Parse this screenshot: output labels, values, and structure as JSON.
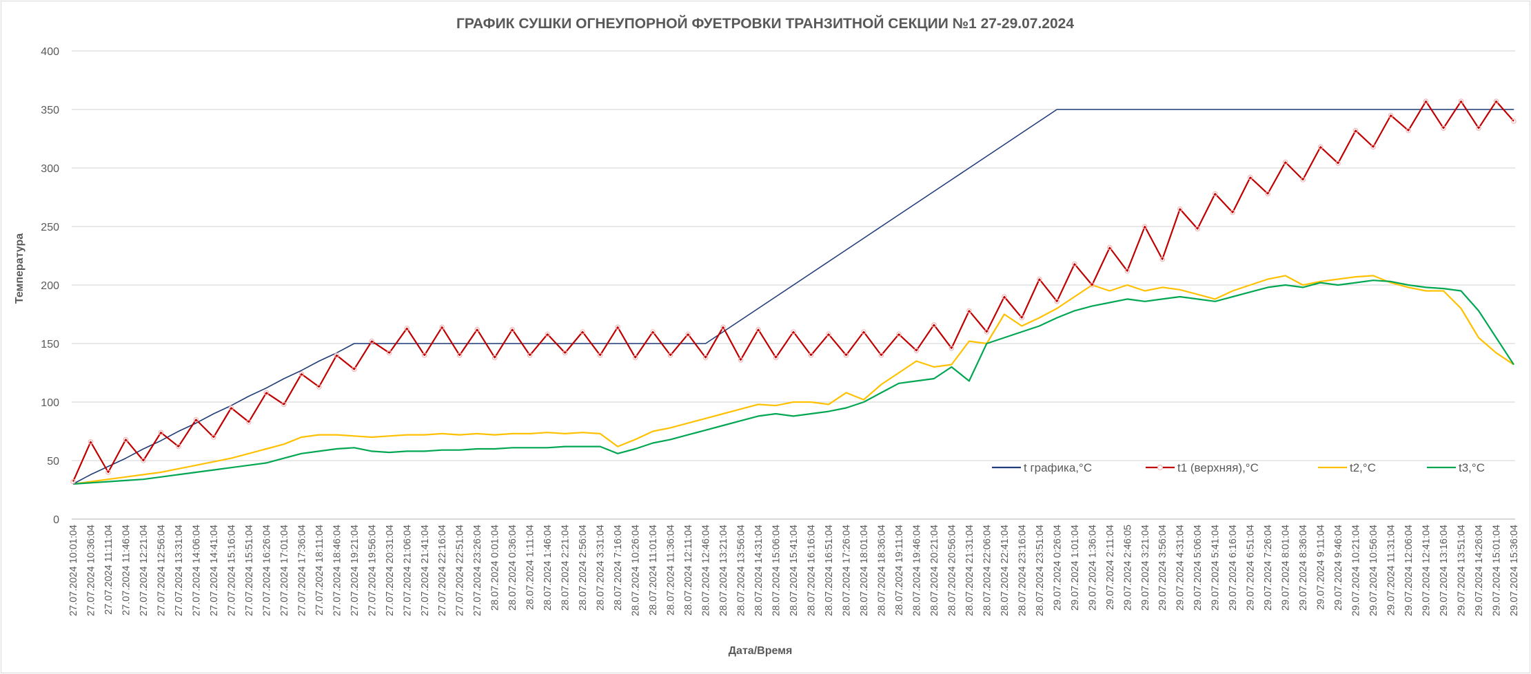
{
  "chart_data": {
    "type": "line",
    "title": "ГРАФИК СУШКИ ОГНЕУПОРНОЙ ФУЕТРОВКИ ТРАНЗИТНОЙ СЕКЦИИ №1 27-29.07.2024",
    "xlabel": "Дата/Время",
    "ylabel": "Температура",
    "ylim": [
      0,
      400
    ],
    "yticks": [
      0,
      50,
      100,
      150,
      200,
      250,
      300,
      350,
      400
    ],
    "grid": true,
    "legend_position": "bottom-right",
    "x": [
      "27.07.2024 10:01:04",
      "27.07.2024 10:36:04",
      "27.07.2024 11:11:04",
      "27.07.2024 11:46:04",
      "27.07.2024 12:21:04",
      "27.07.2024 12:56:04",
      "27.07.2024 13:31:04",
      "27.07.2024 14:06:04",
      "27.07.2024 14:41:04",
      "27.07.2024 15:16:04",
      "27.07.2024 15:51:04",
      "27.07.2024 16:26:04",
      "27.07.2024 17:01:04",
      "27.07.2024 17:36:04",
      "27.07.2024 18:11:04",
      "27.07.2024 18:46:04",
      "27.07.2024 19:21:04",
      "27.07.2024 19:56:04",
      "27.07.2024 20:31:04",
      "27.07.2024 21:06:04",
      "27.07.2024 21:41:04",
      "27.07.2024 22:16:04",
      "27.07.2024 22:51:04",
      "27.07.2024 23:26:04",
      "28.07.2024 0:01:04",
      "28.07.2024 0:36:04",
      "28.07.2024 1:11:04",
      "28.07.2024 1:46:04",
      "28.07.2024 2:21:04",
      "28.07.2024 2:56:04",
      "28.07.2024 3:31:04",
      "28.07.2024 7:16:04",
      "28.07.2024 10:26:04",
      "28.07.2024 11:01:04",
      "28.07.2024 11:36:04",
      "28.07.2024 12:11:04",
      "28.07.2024 12:46:04",
      "28.07.2024 13:21:04",
      "28.07.2024 13:56:04",
      "28.07.2024 14:31:04",
      "28.07.2024 15:06:04",
      "28.07.2024 15:41:04",
      "28.07.2024 16:16:04",
      "28.07.2024 16:51:04",
      "28.07.2024 17:26:04",
      "28.07.2024 18:01:04",
      "28.07.2024 18:36:04",
      "28.07.2024 19:11:04",
      "28.07.2024 19:46:04",
      "28.07.2024 20:21:04",
      "28.07.2024 20:56:04",
      "28.07.2024 21:31:04",
      "28.07.2024 22:06:04",
      "28.07.2024 22:41:04",
      "28.07.2024 23:16:04",
      "28.07.2024 23:51:04",
      "29.07.2024 0:26:04",
      "29.07.2024 1:01:04",
      "29.07.2024 1:36:04",
      "29.07.2024 2:11:04",
      "29.07.2024 2:46:05",
      "29.07.2024 3:21:04",
      "29.07.2024 3:56:04",
      "29.07.2024 4:31:04",
      "29.07.2024 5:06:04",
      "29.07.2024 5:41:04",
      "29.07.2024 6:16:04",
      "29.07.2024 6:51:04",
      "29.07.2024 7:26:04",
      "29.07.2024 8:01:04",
      "29.07.2024 8:36:04",
      "29.07.2024 9:11:04",
      "29.07.2024 9:46:04",
      "29.07.2024 10:21:04",
      "29.07.2024 10:56:04",
      "29.07.2024 11:31:04",
      "29.07.2024 12:06:04",
      "29.07.2024 12:41:04",
      "29.07.2024 13:16:04",
      "29.07.2024 13:51:04",
      "29.07.2024 14:26:04",
      "29.07.2024 15:01:04",
      "29.07.2024 15:36:04"
    ],
    "series": [
      {
        "name": "t графика,°C",
        "color": "#1f3d7a",
        "marker": "none",
        "values": [
          30,
          38,
          45,
          52,
          60,
          67,
          75,
          82,
          90,
          97,
          105,
          112,
          120,
          127,
          135,
          142,
          150,
          150,
          150,
          150,
          150,
          150,
          150,
          150,
          150,
          150,
          150,
          150,
          150,
          150,
          150,
          150,
          150,
          150,
          150,
          150,
          150,
          160,
          170,
          180,
          190,
          200,
          210,
          220,
          230,
          240,
          250,
          260,
          270,
          280,
          290,
          300,
          310,
          320,
          330,
          340,
          350,
          350,
          350,
          350,
          350,
          350,
          350,
          350,
          350,
          350,
          350,
          350,
          350,
          350,
          350,
          350,
          350,
          350,
          350,
          350,
          350,
          350,
          350,
          350,
          350,
          350,
          350
        ]
      },
      {
        "name": "t1 (верхняя),°C",
        "color": "#c00000",
        "marker": "circle",
        "values": [
          32,
          66,
          40,
          68,
          50,
          74,
          62,
          85,
          70,
          95,
          83,
          108,
          98,
          124,
          113,
          140,
          128,
          152,
          142,
          163,
          140,
          164,
          140,
          162,
          138,
          162,
          140,
          158,
          142,
          160,
          140,
          164,
          138,
          160,
          140,
          158,
          138,
          164,
          136,
          162,
          138,
          160,
          140,
          158,
          140,
          160,
          140,
          158,
          144,
          166,
          146,
          178,
          160,
          190,
          172,
          205,
          186,
          218,
          200,
          232,
          212,
          250,
          222,
          265,
          248,
          278,
          262,
          292,
          278,
          305,
          290,
          318,
          304,
          332,
          318,
          345,
          332,
          357,
          334,
          357,
          334,
          357,
          340
        ]
      },
      {
        "name": "t2,°C",
        "color": "#ffc000",
        "marker": "none",
        "values": [
          30,
          32,
          34,
          36,
          38,
          40,
          43,
          46,
          49,
          52,
          56,
          60,
          64,
          70,
          72,
          72,
          71,
          70,
          71,
          72,
          72,
          73,
          72,
          73,
          72,
          73,
          73,
          74,
          73,
          74,
          73,
          62,
          68,
          75,
          78,
          82,
          86,
          90,
          94,
          98,
          97,
          100,
          100,
          98,
          108,
          102,
          115,
          125,
          135,
          130,
          132,
          152,
          150,
          175,
          165,
          172,
          180,
          190,
          200,
          195,
          200,
          195,
          198,
          196,
          192,
          188,
          195,
          200,
          205,
          208,
          200,
          203,
          205,
          207,
          208,
          202,
          198,
          195,
          195,
          180,
          155,
          142,
          132
        ]
      },
      {
        "name": "t3,°C",
        "color": "#00a651",
        "marker": "none",
        "values": [
          30,
          31,
          32,
          33,
          34,
          36,
          38,
          40,
          42,
          44,
          46,
          48,
          52,
          56,
          58,
          60,
          61,
          58,
          57,
          58,
          58,
          59,
          59,
          60,
          60,
          61,
          61,
          61,
          62,
          62,
          62,
          56,
          60,
          65,
          68,
          72,
          76,
          80,
          84,
          88,
          90,
          88,
          90,
          92,
          95,
          100,
          108,
          116,
          118,
          120,
          130,
          118,
          150,
          155,
          160,
          165,
          172,
          178,
          182,
          185,
          188,
          186,
          188,
          190,
          188,
          186,
          190,
          194,
          198,
          200,
          198,
          202,
          200,
          202,
          204,
          203,
          200,
          198,
          197,
          195,
          178,
          155,
          132
        ]
      }
    ]
  }
}
